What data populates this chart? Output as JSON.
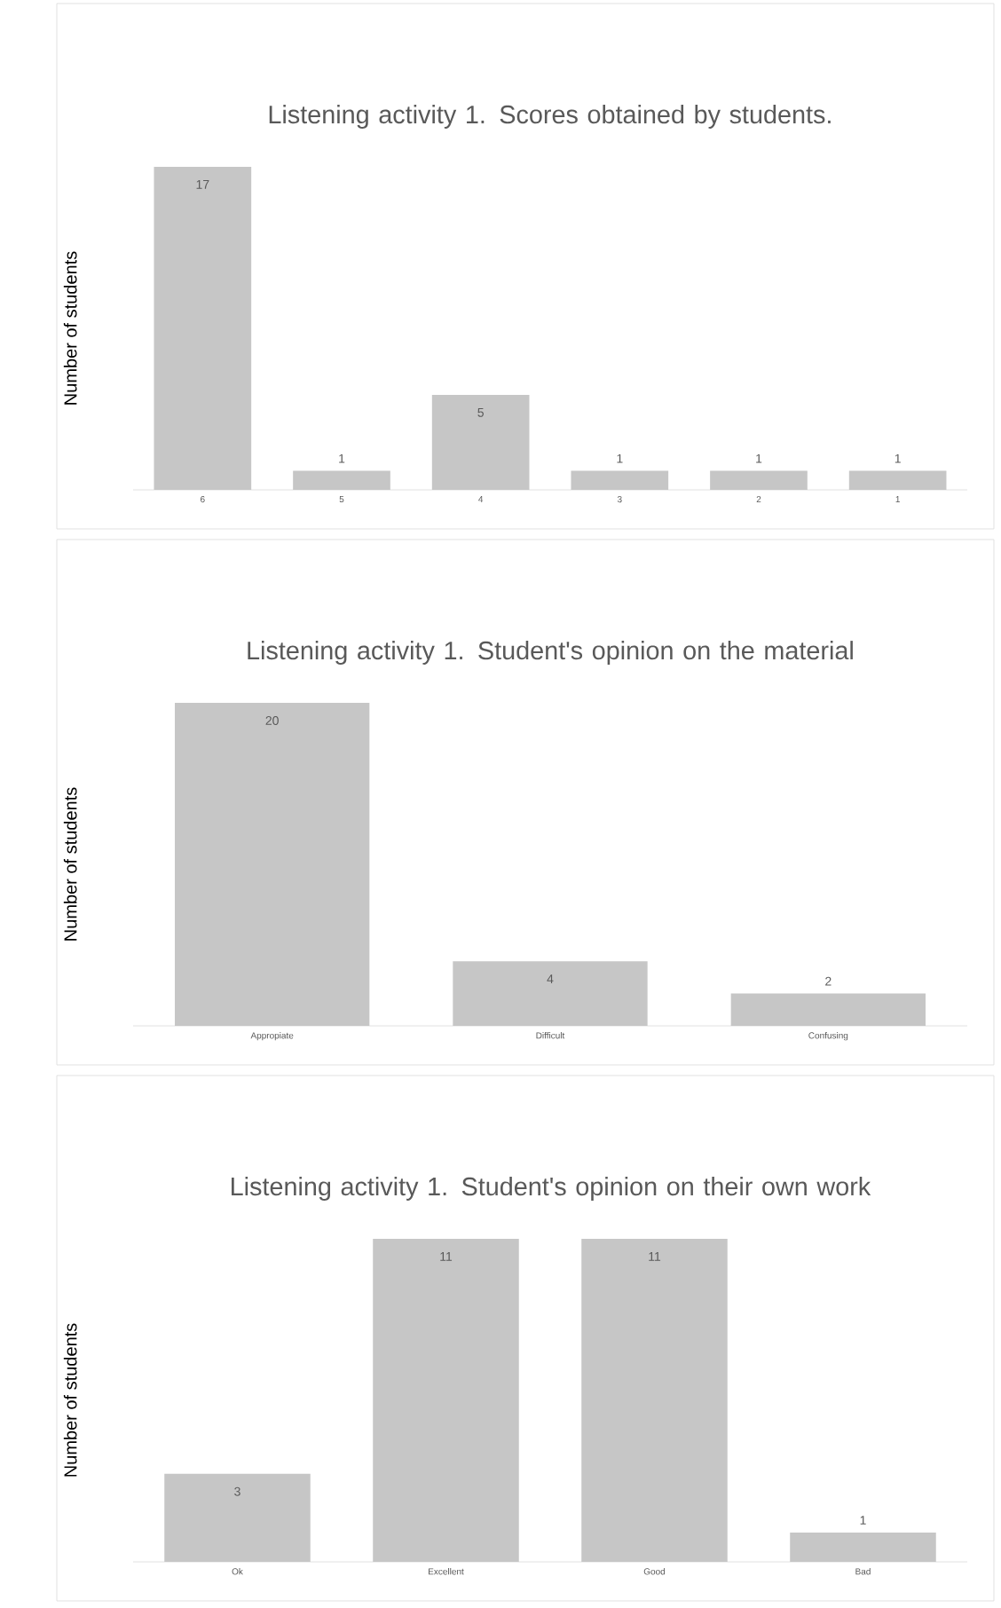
{
  "chart_data": [
    {
      "type": "bar",
      "title": "Listening activity 1. Scores obtained by students.",
      "ylabel": "Number of students",
      "categories": [
        "6",
        "5",
        "4",
        "3",
        "2",
        "1"
      ],
      "values": [
        17,
        1,
        5,
        1,
        1,
        1
      ],
      "color": "#c6c6c6",
      "data_labels": true
    },
    {
      "type": "bar",
      "title": "Listening activity 1. Student's opinion on the material",
      "ylabel": "Number of students",
      "categories": [
        "Appropiate",
        "Difficult",
        "Confusing"
      ],
      "values": [
        20,
        4,
        2
      ],
      "color": "#c6c6c6",
      "data_labels": true
    },
    {
      "type": "bar",
      "title": "Listening activity 1. Student's opinion on their own work",
      "ylabel": "Number of students",
      "categories": [
        "Ok",
        "Excellent",
        "Good",
        "Bad"
      ],
      "values": [
        3,
        11,
        11,
        1
      ],
      "color": "#c6c6c6",
      "data_labels": true
    }
  ]
}
